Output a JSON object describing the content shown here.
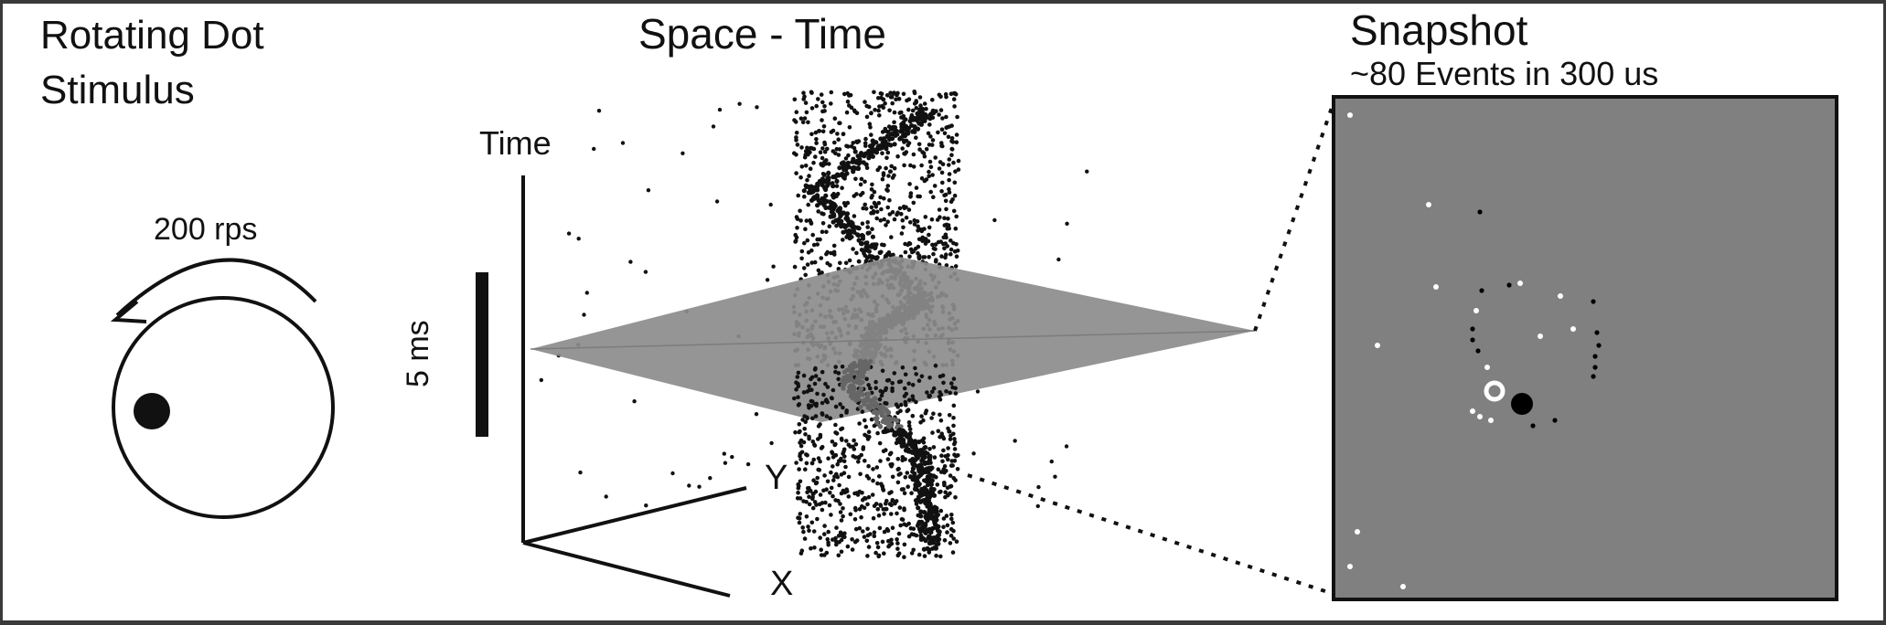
{
  "stimulus": {
    "title_line1": "Rotating Dot",
    "title_line2": "Stimulus",
    "rate_label": "200 rps"
  },
  "space_time": {
    "title": "Space - Time",
    "time_axis_label": "Time",
    "scale_bar_label": "5 ms",
    "y_axis_label": "Y",
    "x_axis_label": "X"
  },
  "snapshot": {
    "title": "Snapshot",
    "subtitle": "~80 Events in 300 us"
  },
  "colors": {
    "ink": "#111111",
    "plane_fill": "#8c8c8c",
    "snapshot_bg": "#808080",
    "event_on": "#ffffff",
    "event_off": "#000000",
    "frame": "#3a3a3a"
  }
}
